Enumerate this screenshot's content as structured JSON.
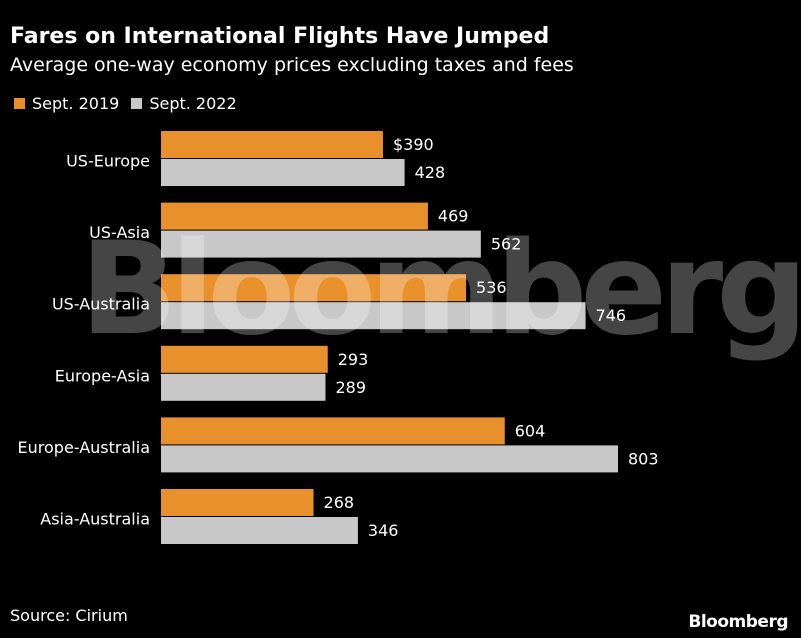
{
  "header": {
    "title": "Fares on International Flights Have Jumped",
    "subtitle": "Average one-way economy prices excluding taxes and fees"
  },
  "footer": {
    "source": "Source: Cirium",
    "brand": "Bloomberg"
  },
  "watermark": "Bloomberg",
  "colors": {
    "background": "#000000",
    "sept2019": "#e8902c",
    "sept2022": "#c8c8c8",
    "text": "#ffffff"
  },
  "chart_data": {
    "type": "bar",
    "orientation": "horizontal",
    "categories": [
      "US-Europe",
      "US-Asia",
      "US-Australia",
      "Europe-Asia",
      "Europe-Australia",
      "Asia-Australia"
    ],
    "series": [
      {
        "name": "Sept. 2019",
        "values": [
          390,
          469,
          536,
          293,
          604,
          268
        ],
        "labels": [
          "$390",
          "469",
          "536",
          "293",
          "604",
          "268"
        ]
      },
      {
        "name": "Sept. 2022",
        "values": [
          428,
          562,
          746,
          289,
          803,
          346
        ],
        "labels": [
          "428",
          "562",
          "746",
          "289",
          "803",
          "346"
        ]
      }
    ],
    "legend_position": "top-left",
    "grid": false,
    "xlim": [
      0,
      803
    ]
  }
}
